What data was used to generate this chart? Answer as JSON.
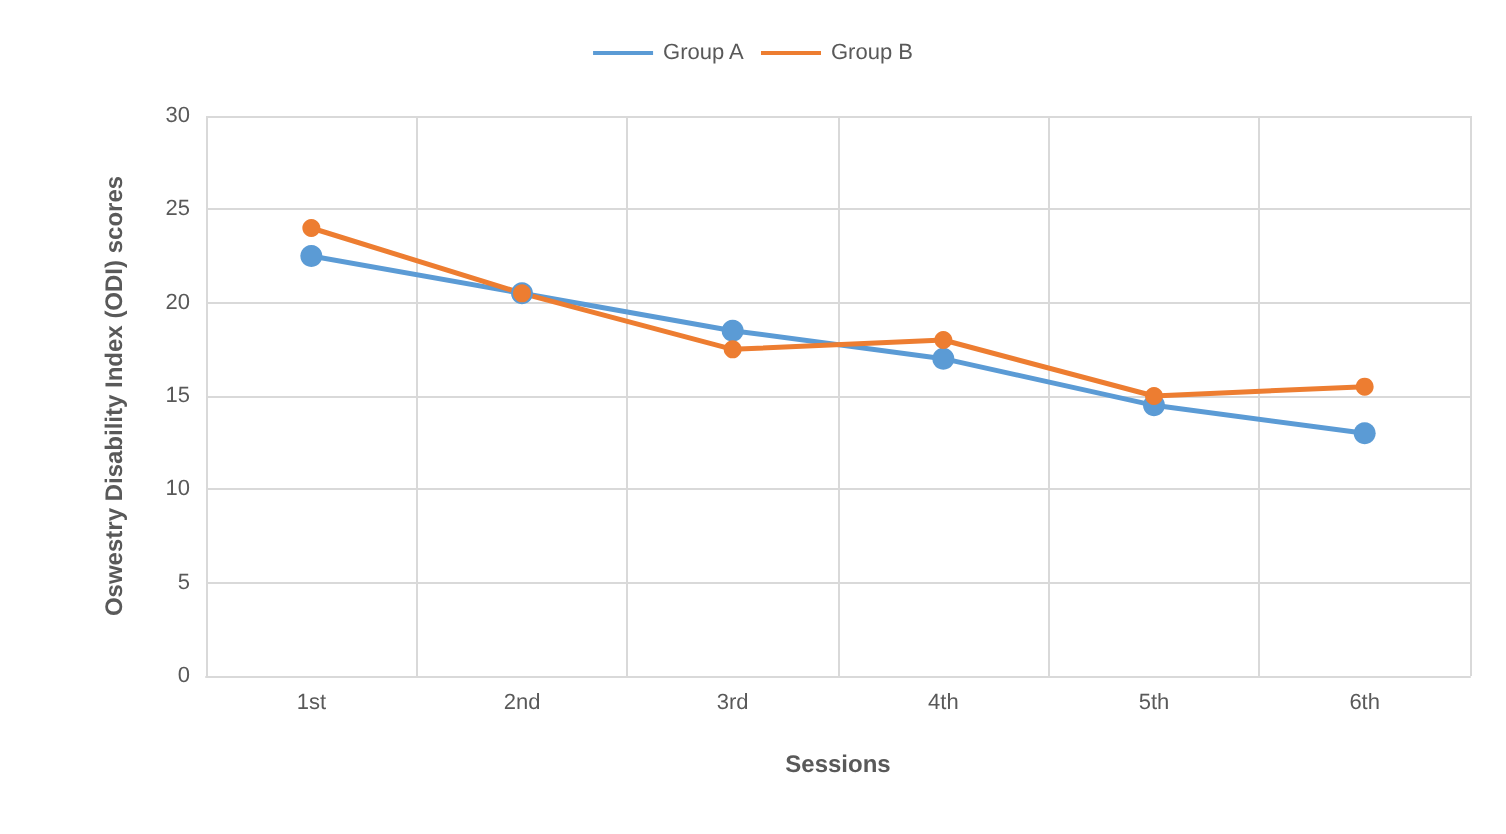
{
  "chart_data": {
    "type": "line",
    "xlabel": "Sessions",
    "ylabel": "Oswestry Disability Index (ODI) scores",
    "categories": [
      "1st",
      "2nd",
      "3rd",
      "4th",
      "5th",
      "6th"
    ],
    "series": [
      {
        "name": "Group A",
        "color": "#5b9bd5",
        "values": [
          22.5,
          20.5,
          18.5,
          17,
          14.5,
          13
        ]
      },
      {
        "name": "Group B",
        "color": "#ed7d31",
        "values": [
          24,
          20.5,
          17.5,
          18,
          15,
          15.5
        ]
      }
    ],
    "ylim": [
      0,
      30
    ],
    "yticks": [
      0,
      5,
      10,
      15,
      20,
      25,
      30
    ],
    "grid": true,
    "legend": "top",
    "marker": "circle",
    "line_style": "solid"
  }
}
